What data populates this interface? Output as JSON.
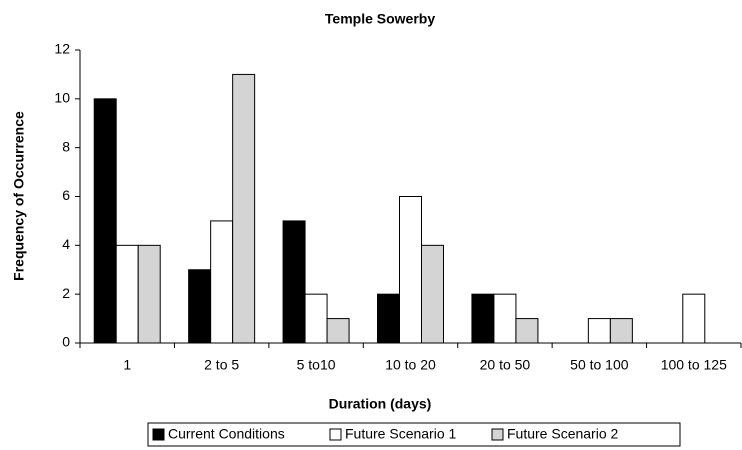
{
  "chart_data": {
    "type": "bar",
    "title": "Temple Sowerby",
    "x_label": "Duration (days)",
    "y_label": "Frequency of Occurrence",
    "categories": [
      "1",
      "2 to 5",
      "5 to10",
      "10 to 20",
      "20 to 50",
      "50 to 100",
      "100 to 125"
    ],
    "series": [
      {
        "name": "Current Conditions",
        "color": "#000000",
        "values": [
          10,
          3,
          5,
          2,
          2,
          0,
          0
        ]
      },
      {
        "name": "Future Scenario 1",
        "color": "#ffffff",
        "values": [
          4,
          5,
          2,
          6,
          2,
          1,
          2
        ]
      },
      {
        "name": "Future Scenario 2",
        "color": "#d4d4d4",
        "values": [
          4,
          11,
          1,
          4,
          1,
          1,
          0
        ]
      }
    ],
    "ylim": [
      0,
      12
    ],
    "yticks": [
      0,
      2,
      4,
      6,
      8,
      10,
      12
    ],
    "grid": false,
    "legend": "bottom"
  }
}
